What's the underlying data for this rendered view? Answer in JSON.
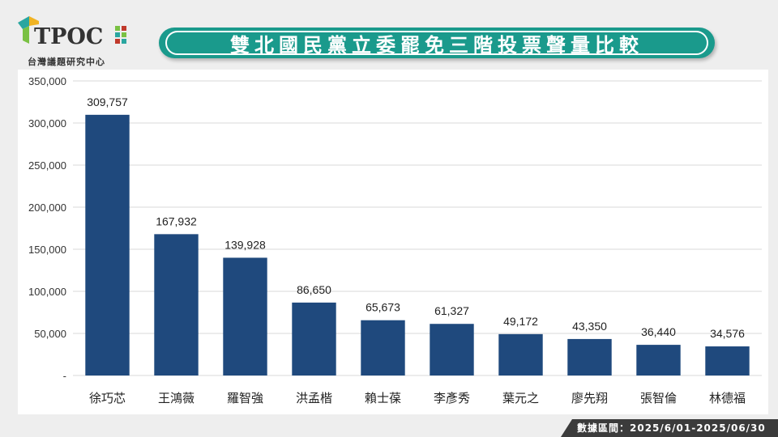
{
  "header": {
    "logo_text": "TPOC",
    "logo_subtitle": "台灣議題研究中心",
    "title": "雙北國民黨立委罷免三階投票聲量比較"
  },
  "footer": {
    "data_period": "數據區間：2025/6/01-2025/06/30"
  },
  "colors": {
    "bar": "#1f497d",
    "title_pill": "#1a9a8c",
    "footer_bg": "#3b3b3b"
  },
  "chart_data": {
    "type": "bar",
    "title": "",
    "xlabel": "",
    "ylabel": "",
    "ylim": [
      0,
      350000
    ],
    "yticks": [
      0,
      50000,
      100000,
      150000,
      200000,
      250000,
      300000,
      350000
    ],
    "ytick_labels": [
      "-",
      "50,000",
      "100,000",
      "150,000",
      "200,000",
      "250,000",
      "300,000",
      "350,000"
    ],
    "grid": true,
    "categories": [
      "徐巧芯",
      "王鴻薇",
      "羅智強",
      "洪孟楷",
      "賴士葆",
      "李彥秀",
      "葉元之",
      "廖先翔",
      "張智倫",
      "林德福"
    ],
    "values": [
      309757,
      167932,
      139928,
      86650,
      65673,
      61327,
      49172,
      43350,
      36440,
      34576
    ],
    "value_labels": [
      "309,757",
      "167,932",
      "139,928",
      "86,650",
      "65,673",
      "61,327",
      "49,172",
      "43,350",
      "36,440",
      "34,576"
    ]
  }
}
